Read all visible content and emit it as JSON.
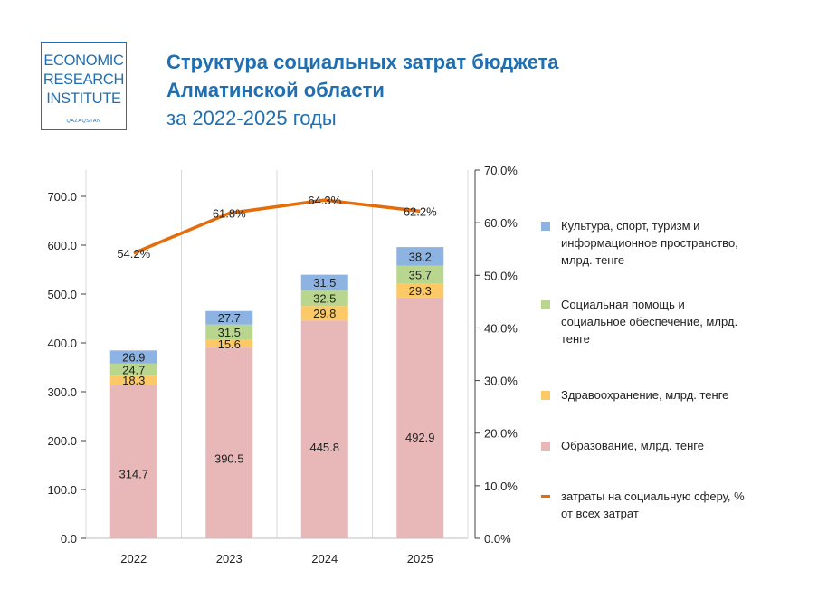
{
  "logo": {
    "line1": "ECONOMIC",
    "line2": "RESEARCH",
    "line3": "INSTITUTE",
    "line4": "QAZAQSTAN"
  },
  "header": {
    "title_line1": "Структура социальных затрат бюджета",
    "title_line2": "Алматинской области",
    "title_line3": "за 2022-2025 годы"
  },
  "colors": {
    "brand": "#1f6fb2",
    "education": "#e8b8b8",
    "health": "#fcc966",
    "social": "#b9d68f",
    "culture": "#8db3e2",
    "line": "#e46c0a"
  },
  "chart_data": {
    "type": "stacked-bar-line",
    "title": "Структура социальных затрат бюджета Алматинской области за 2022-2025 годы",
    "categories": [
      "2022",
      "2023",
      "2024",
      "2025"
    ],
    "series": [
      {
        "name": "Образование, млрд. тенге",
        "key": "education",
        "axis": "left",
        "values": [
          314.7,
          390.5,
          445.8,
          492.9
        ],
        "labels": [
          "314.7",
          "390.5",
          "445.8",
          "492.9"
        ]
      },
      {
        "name": "Здравоохранение, млрд. тенге",
        "key": "health",
        "axis": "left",
        "values": [
          18.3,
          15.6,
          29.8,
          29.3
        ],
        "labels": [
          "18.3",
          "15.6",
          "29.8",
          "29.3"
        ]
      },
      {
        "name": "Социальная помощь и социальное обеспечение, млрд. тенге",
        "key": "social",
        "axis": "left",
        "values": [
          24.7,
          31.5,
          32.5,
          35.7
        ],
        "labels": [
          "24.7",
          "31.5",
          "32.5",
          "35.7"
        ]
      },
      {
        "name": "Культура, спорт, туризм и информационное пространство, млрд. тенге",
        "key": "culture",
        "axis": "left",
        "values": [
          26.9,
          27.7,
          31.5,
          38.2
        ],
        "labels": [
          "26.9",
          "27.7",
          "31.5",
          "38.2"
        ]
      },
      {
        "name": "затраты на социальную сферу, % от всех затрат",
        "key": "line",
        "axis": "right",
        "type": "line",
        "values": [
          54.2,
          61.8,
          64.3,
          62.2
        ],
        "labels": [
          "54.2%",
          "61.8%",
          "64.3%",
          "62.2%"
        ]
      }
    ],
    "left_axis": {
      "min": 0,
      "max": 700,
      "ticks": [
        "0.0",
        "100.0",
        "200.0",
        "300.0",
        "400.0",
        "500.0",
        "600.0",
        "700.0"
      ]
    },
    "right_axis": {
      "min": 0,
      "max": 70,
      "ticks": [
        "0.0%",
        "10.0%",
        "20.0%",
        "30.0%",
        "40.0%",
        "50.0%",
        "60.0%",
        "70.0%"
      ]
    },
    "legend": {
      "position": "right",
      "items": [
        {
          "key": "culture",
          "lines": [
            "Культура, спорт, туризм и",
            "информационное пространство,",
            "млрд. тенге"
          ]
        },
        {
          "key": "social",
          "lines": [
            "Социальная помощь и",
            "социальное обеспечение, млрд.",
            "тенге"
          ]
        },
        {
          "key": "health",
          "lines": [
            "Здравоохранение, млрд. тенге"
          ]
        },
        {
          "key": "education",
          "lines": [
            "Образование, млрд. тенге"
          ]
        },
        {
          "key": "line",
          "lines": [
            "затраты на социальную сферу, %",
            "от всех затрат"
          ]
        }
      ]
    },
    "grid": "vertical"
  }
}
